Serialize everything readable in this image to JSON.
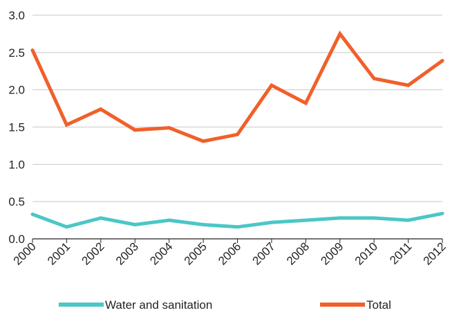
{
  "chart_data": {
    "type": "line",
    "title": "",
    "xlabel": "",
    "ylabel": "",
    "x": [
      "2000",
      "2001",
      "2002",
      "2003",
      "2004",
      "2005",
      "2006",
      "2007",
      "2008",
      "2009",
      "2010",
      "2011",
      "2012"
    ],
    "ylim": [
      0,
      3.0
    ],
    "yticks": [
      "0.0",
      "0.5",
      "1.0",
      "1.5",
      "2.0",
      "2.5",
      "3.0"
    ],
    "grid": true,
    "legend_position": "bottom",
    "series": [
      {
        "name": "Water and sanitation",
        "color": "#4cc6c6",
        "values": [
          0.33,
          0.16,
          0.28,
          0.19,
          0.25,
          0.19,
          0.16,
          0.22,
          0.25,
          0.28,
          0.28,
          0.25,
          0.34
        ]
      },
      {
        "name": "Total",
        "color": "#f0602a",
        "values": [
          2.53,
          1.53,
          1.74,
          1.46,
          1.49,
          1.31,
          1.4,
          2.06,
          1.82,
          2.75,
          2.15,
          2.06,
          2.39
        ]
      }
    ]
  }
}
